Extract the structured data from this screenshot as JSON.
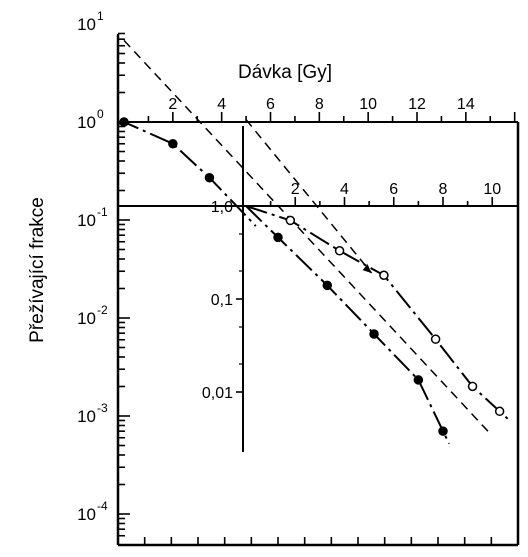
{
  "chart_data": {
    "type": "scatter",
    "title": "",
    "scale": "log",
    "grid": false,
    "y_axis": {
      "label": "Přežívající frakce",
      "scale": "log",
      "ylim": [
        6e-05,
        10
      ],
      "ticks": [
        {
          "base": "10",
          "exp": "1",
          "value": 10
        },
        {
          "base": "10",
          "exp": "0",
          "value": 1
        },
        {
          "base": "10",
          "exp": "-1",
          "value": 0.1
        },
        {
          "base": "10",
          "exp": "-2",
          "value": 0.01
        },
        {
          "base": "10",
          "exp": "-3",
          "value": 0.001
        },
        {
          "base": "10",
          "exp": "-4",
          "value": 0.0001
        }
      ]
    },
    "top_axis": {
      "label": "Dávka [Gy]",
      "xlim": [
        0,
        16
      ],
      "ticks": [
        "2",
        "4",
        "6",
        "8",
        "10",
        "12",
        "14"
      ]
    },
    "inset_x_axis": {
      "xlim": [
        0,
        11
      ],
      "ticks": [
        "2",
        "4",
        "6",
        "8",
        "10"
      ]
    },
    "inset_y_axis": {
      "ticks": [
        "1,0",
        "0,1",
        "0,01"
      ]
    },
    "series": [
      {
        "marker": "filled-circle",
        "axis": "top",
        "x": [
          0,
          2,
          3.5,
          5
        ],
        "y": [
          1.0,
          0.6,
          0.27,
          0.11
        ]
      },
      {
        "marker": "filled-circle",
        "axis": "inset",
        "x": [
          0,
          1.3,
          3.3,
          5.2,
          7.0,
          8.0
        ],
        "y": [
          1.0,
          0.46,
          0.14,
          0.042,
          0.0135,
          0.0038
        ]
      },
      {
        "marker": "open-circle",
        "axis": "inset",
        "x": [
          0,
          1.8,
          3.8,
          5.6,
          7.7,
          9.2,
          10.3
        ],
        "y": [
          1.0,
          0.7,
          0.33,
          0.18,
          0.037,
          0.0115,
          0.0062
        ]
      }
    ],
    "reference_lines": [
      {
        "axis": "top",
        "style": "dashed",
        "x": [
          0,
          15
        ],
        "y": [
          6.8,
          0.00066
        ]
      },
      {
        "axis": "inset",
        "style": "dashed",
        "x": [
          0,
          5.1
        ],
        "y": [
          8.5,
          0.19
        ]
      }
    ]
  }
}
